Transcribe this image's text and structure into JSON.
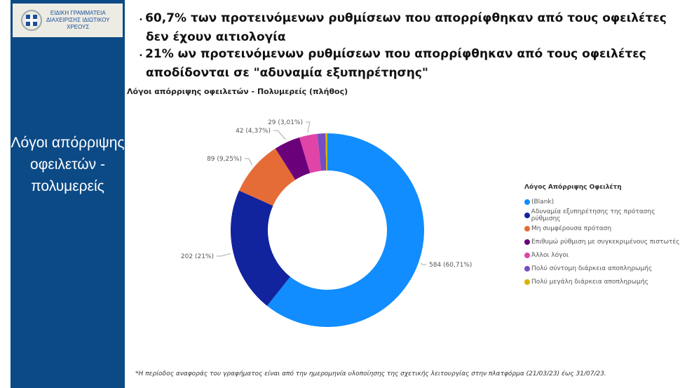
{
  "logo": {
    "line1": "ΕΙΔΙΚΗ ΓΡΑΜΜΑΤΕΙΑ",
    "line2": "ΔΙΑΧΕΙΡΙΣΗΣ ΙΔΙΩΤΙΚΟΥ",
    "line3": "ΧΡΕΟΥΣ"
  },
  "sidebar": {
    "title": "Λόγοι απόρριψης οφειλετών - πολυμερείς"
  },
  "bullets": [
    "60,7% των προτεινόμενων ρυθμίσεων που απορρίφθηκαν από τους οφειλέτες δεν έχουν αιτιολογία",
    "21% ων προτεινόμενων ρυθμίσεων που απορρίφθηκαν από τους οφειλέτες αποδίδονται σε \"αδυναμία εξυπηρέτησης\""
  ],
  "footnote": "*Η περίοδος αναφοράς του γραφήματος είναι από την ημερομηνία υλοποίησης της σχετικής λειτουργίας στην πλατφόρμα (21/03/23) έως 31/07/23.",
  "chart_data": {
    "type": "pie",
    "donut": true,
    "title": "Λόγοι απόρριψης οφειλετών - Πολυμερείς (πλήθος)",
    "legend_title": "Λόγος Απόρριψης Οφειλέτη",
    "legend_position": "right",
    "categories": [
      "(Blank)",
      "Αδυναμία εξυπηρέτησης της πρότασης ρύθμισης",
      "Μη συμφέρουσα πρόταση",
      "Επιθυμώ ρύθμιση με συγκεκριμένους πιστωτές",
      "Άλλοι λόγοι",
      "Πολύ σύντομη διάρκεια αποπληρωμής",
      "Πολύ μεγάλη διάρκεια αποπληρωμής"
    ],
    "values": [
      584,
      202,
      89,
      42,
      29,
      13,
      3
    ],
    "data_labels": [
      "584 (60,71%)",
      "202 (21%)",
      "89 (9,25%)",
      "42 (4,37%)",
      "29 (3,01%)",
      "",
      ""
    ],
    "colors": [
      "#118dff",
      "#12239e",
      "#e66c37",
      "#6b007b",
      "#e044a7",
      "#744ec2",
      "#d9b300"
    ]
  }
}
